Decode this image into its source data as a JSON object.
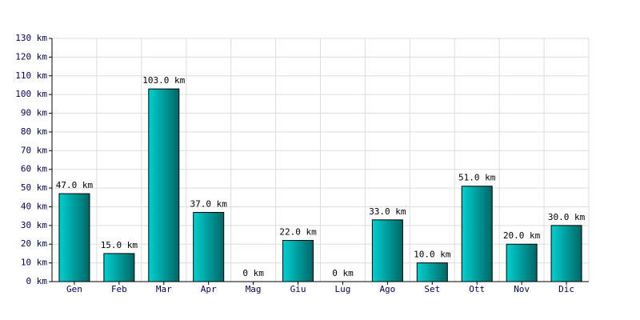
{
  "chart_data": {
    "type": "bar",
    "categories": [
      "Gen",
      "Feb",
      "Mar",
      "Apr",
      "Mag",
      "Giu",
      "Lug",
      "Ago",
      "Set",
      "Ott",
      "Nov",
      "Dic"
    ],
    "values": [
      47,
      15,
      103,
      37,
      0,
      22,
      0,
      33,
      10,
      51,
      20,
      30
    ],
    "value_labels": [
      "47.0 km",
      "15.0 km",
      "103.0 km",
      "37.0 km",
      "0 km",
      "22.0 km",
      "0 km",
      "33.0 km",
      "10.0 km",
      "51.0 km",
      "20.0 km",
      "30.0 km"
    ],
    "color": "#00d0d0",
    "ylim": [
      0,
      130
    ],
    "yticks": [
      {
        "value": 0,
        "label": "0 km"
      },
      {
        "value": 10,
        "label": "10 km"
      },
      {
        "value": 20,
        "label": "20 km"
      },
      {
        "value": 30,
        "label": "30 km"
      },
      {
        "value": 40,
        "label": "40 km"
      },
      {
        "value": 50,
        "label": "50 km"
      },
      {
        "value": 60,
        "label": "60 km"
      },
      {
        "value": 70,
        "label": "70 km"
      },
      {
        "value": 80,
        "label": "80 km"
      },
      {
        "value": 90,
        "label": "90 km"
      },
      {
        "value": 100,
        "label": "100 km"
      },
      {
        "value": 110,
        "label": "110 km"
      },
      {
        "value": 120,
        "label": "120 km"
      },
      {
        "value": 130,
        "label": "130 km"
      }
    ],
    "grid": true
  }
}
